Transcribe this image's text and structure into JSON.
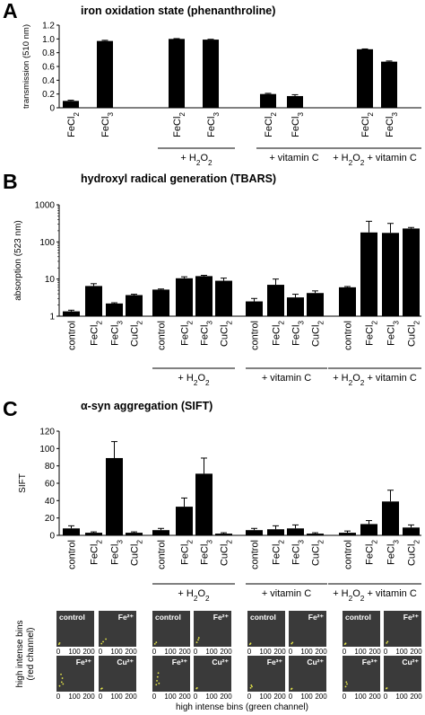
{
  "chart_data": [
    {
      "type": "bar",
      "panel_label": "A",
      "title": "iron oxidation state (phenanthroline)",
      "ylabel": "transmission (510 nm)",
      "ylim": [
        0,
        1.2
      ],
      "yticks": [
        "0",
        "0.2",
        "0.4",
        "0.6",
        "0.8",
        "1.0",
        "1.2"
      ],
      "categories": [
        "FeCl2",
        "FeCl3",
        "FeCl2",
        "FeCl3",
        "FeCl2",
        "FeCl3",
        "FeCl2",
        "FeCl3"
      ],
      "values": [
        0.1,
        0.97,
        1.0,
        0.99,
        0.2,
        0.17,
        0.85,
        0.67
      ],
      "errors": [
        0.01,
        0.01,
        0.005,
        0.005,
        0.01,
        0.02,
        0.005,
        0.01
      ],
      "groups": [
        "",
        "+ H2O2",
        "+ vitamin C",
        "+ H2O2 + vitamin C"
      ]
    },
    {
      "type": "bar",
      "panel_label": "B",
      "title": "hydroxyl radical generation (TBARS)",
      "ylabel": "absorption (523 nm)",
      "yscale": "log",
      "ylim": [
        1,
        1000
      ],
      "yticks": [
        "1",
        "10",
        "100",
        "1000"
      ],
      "categories": [
        "control",
        "FeCl2",
        "FeCl3",
        "CuCl2",
        "control",
        "FeCl2",
        "FeCl3",
        "CuCl2",
        "control",
        "FeCl2",
        "FeCl3",
        "CuCl2",
        "control",
        "FeCl2",
        "FeCl3",
        "CuCl2"
      ],
      "values": [
        1.35,
        6.5,
        2.2,
        3.7,
        5.2,
        10.5,
        12,
        9,
        2.5,
        7,
        3.2,
        4.2,
        6,
        180,
        175,
        230
      ],
      "errors": [
        0.1,
        1.0,
        0.1,
        0.2,
        0.2,
        1.0,
        0.6,
        1.6,
        0.5,
        3,
        0.7,
        0.6,
        0.3,
        180,
        140,
        15
      ],
      "groups": [
        "",
        "+ H2O2",
        "+ vitamin C",
        "+ H2O2 + vitamin C"
      ]
    },
    {
      "type": "bar",
      "panel_label": "C",
      "title": "α-syn aggregation (SIFT)",
      "ylabel": "SIFT",
      "ylim": [
        0,
        120
      ],
      "yticks": [
        "0",
        "20",
        "40",
        "60",
        "80",
        "100",
        "120"
      ],
      "categories": [
        "control",
        "FeCl2",
        "FeCl3",
        "CuCl2",
        "control",
        "FeCl2",
        "FeCl3",
        "CuCl2",
        "control",
        "FeCl2",
        "FeCl3",
        "CuCl2",
        "control",
        "FeCl2",
        "FeCl3",
        "CuCl2"
      ],
      "values": [
        8,
        3,
        89,
        3,
        6,
        33,
        71,
        2,
        6,
        7,
        8,
        2,
        3,
        13,
        39,
        9
      ],
      "errors": [
        3,
        1,
        19,
        1,
        2,
        10,
        18,
        1,
        2,
        4,
        4,
        1,
        2,
        4,
        13,
        3
      ],
      "groups": [
        "",
        "+ H2O2",
        "+ vitamin C",
        "+ H2O2 + vitamin C"
      ]
    }
  ],
  "scatter_grid": {
    "xlabel": "high intense bins (green channel)",
    "ylabel_line1": "high intense bins",
    "ylabel_line2": "(red channel)",
    "ticks": [
      "0",
      "100",
      "200"
    ],
    "panels": [
      {
        "label": "control",
        "dots": [
          [
            5,
            6
          ],
          [
            10,
            15
          ]
        ]
      },
      {
        "label": "Fe²⁺",
        "dots": [
          [
            8,
            10
          ],
          [
            20,
            25
          ],
          [
            40,
            45
          ]
        ]
      },
      {
        "label": "Fe³⁺",
        "dots": [
          [
            10,
            30
          ],
          [
            25,
            60
          ],
          [
            30,
            90
          ],
          [
            20,
            120
          ],
          [
            35,
            45
          ]
        ]
      },
      {
        "label": "Cu²⁺",
        "dots": [
          [
            6,
            8
          ],
          [
            12,
            12
          ]
        ]
      },
      {
        "label": "control",
        "dots": [
          [
            5,
            8
          ],
          [
            15,
            20
          ]
        ]
      },
      {
        "label": "Fe²⁺",
        "dots": [
          [
            10,
            20
          ],
          [
            20,
            40
          ],
          [
            25,
            55
          ]
        ]
      },
      {
        "label": "Fe³⁺",
        "dots": [
          [
            15,
            40
          ],
          [
            20,
            70
          ],
          [
            25,
            100
          ],
          [
            30,
            130
          ],
          [
            35,
            50
          ]
        ]
      },
      {
        "label": "Cu²⁺",
        "dots": [
          [
            8,
            10
          ],
          [
            12,
            15
          ]
        ]
      },
      {
        "label": "control",
        "dots": [
          [
            5,
            5
          ],
          [
            10,
            12
          ]
        ]
      },
      {
        "label": "Fe²⁺",
        "dots": [
          [
            8,
            10
          ],
          [
            15,
            18
          ]
        ]
      },
      {
        "label": "Fe³⁺",
        "dots": [
          [
            10,
            15
          ],
          [
            20,
            25
          ],
          [
            15,
            35
          ]
        ]
      },
      {
        "label": "Cu²⁺",
        "dots": [
          [
            6,
            6
          ],
          [
            10,
            10
          ]
        ]
      },
      {
        "label": "control",
        "dots": [
          [
            5,
            6
          ],
          [
            10,
            12
          ]
        ]
      },
      {
        "label": "Fe²⁺",
        "dots": [
          [
            8,
            15
          ],
          [
            15,
            25
          ]
        ]
      },
      {
        "label": "Fe³⁺",
        "dots": [
          [
            10,
            25
          ],
          [
            20,
            45
          ],
          [
            15,
            60
          ]
        ]
      },
      {
        "label": "Cu²⁺",
        "dots": [
          [
            6,
            10
          ],
          [
            10,
            14
          ]
        ]
      }
    ]
  },
  "colors": {
    "bar": "#000000",
    "mini_bg": "#3a3a3a",
    "dot": "#e8e84a"
  }
}
